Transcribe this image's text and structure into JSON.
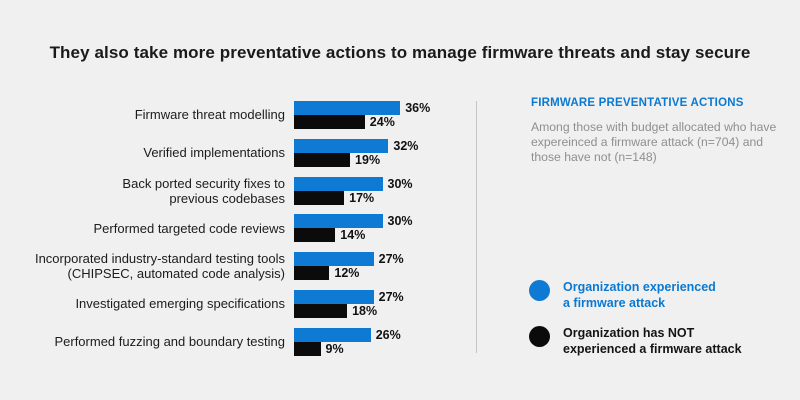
{
  "title": "They also take more preventative actions to manage firmware threats and stay secure",
  "chart_data": {
    "type": "bar",
    "orientation": "horizontal",
    "title": "They also take more preventative actions to manage firmware threats and stay secure",
    "unit": "%",
    "xlim": [
      0,
      40
    ],
    "grid": false,
    "value_labels": true,
    "legend_position": "right",
    "categories": [
      "Firmware threat modelling",
      "Verified implementations",
      "Back ported security fixes to\nprevious codebases",
      "Performed targeted code reviews",
      "Incorporated industry-standard testing tools\n(CHIPSEC, automated code analysis)",
      "Investigated emerging specifications",
      "Performed fuzzing and boundary testing"
    ],
    "series": [
      {
        "name": "Organization experienced a firmware attack",
        "color": "#0e7ad3",
        "values": [
          36,
          32,
          30,
          30,
          27,
          27,
          26
        ]
      },
      {
        "name": "Organization has NOT experienced a firmware attack",
        "color": "#0b0b0b",
        "values": [
          24,
          19,
          17,
          14,
          12,
          18,
          9
        ]
      }
    ]
  },
  "side_panel": {
    "heading": "FIRMWARE PREVENTATIVE ACTIONS",
    "description": "Among those with budget allocated who have\nexpereinced a firmware attack (n=704) and\nthose have not (n=148)",
    "legend": [
      {
        "label": "Organization experienced\na firmware attack",
        "color": "#0e7ad3",
        "text_color": "#0b79d1"
      },
      {
        "label": "Organization has NOT\nexperienced a firmware attack",
        "color": "#0b0b0b",
        "text_color": "#141414"
      }
    ]
  },
  "colors": {
    "background": "#f0f0f0",
    "divider": "#c5c5c5",
    "category_text": "#1c1c1c",
    "value_text": "#111111",
    "description_text": "#8f8f8f",
    "heading_text": "#0b79d1"
  }
}
